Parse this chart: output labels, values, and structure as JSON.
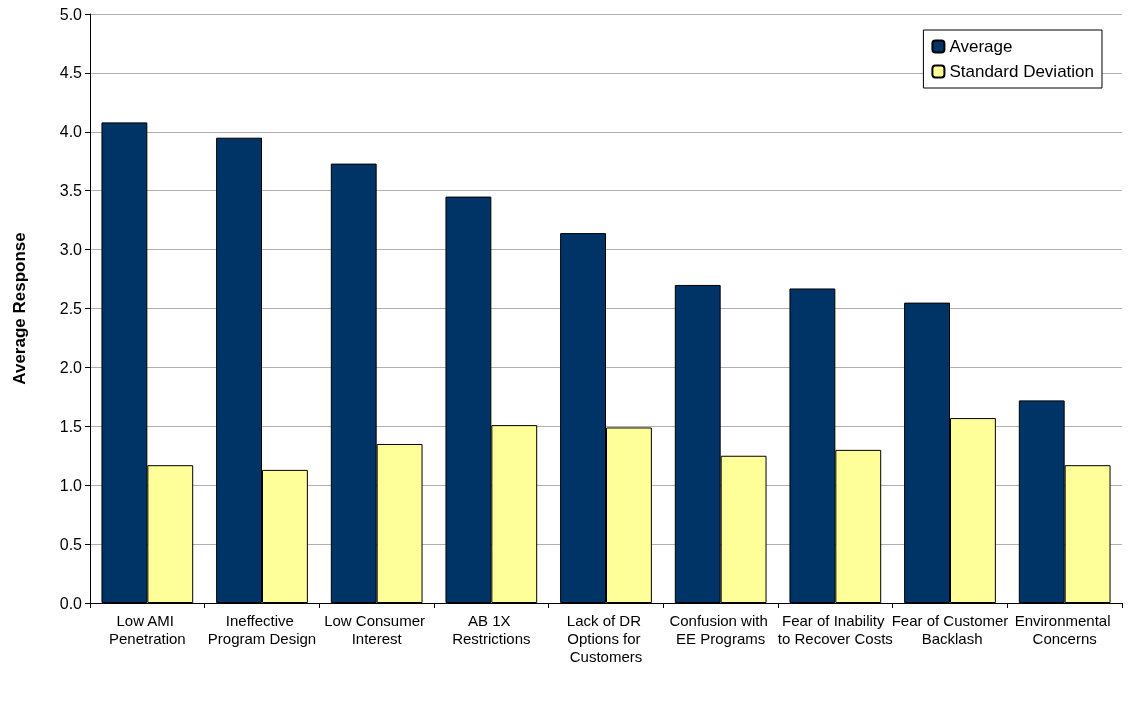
{
  "chart_data": {
    "type": "bar",
    "ylabel": "Average Response",
    "categories": [
      "Low AMI Penetration",
      "Ineffective Program Design",
      "Low Consumer Interest",
      "AB 1X Restrictions",
      "Lack of DR Options for Customers",
      "Confusion with EE Programs",
      "Fear of Inability to Recover Costs",
      "Fear of Customer Backlash",
      "Environmental Concerns"
    ],
    "series": [
      {
        "name": "Average",
        "color": "#003366",
        "values": [
          4.08,
          3.95,
          3.73,
          3.45,
          3.14,
          2.7,
          2.67,
          2.55,
          1.72
        ]
      },
      {
        "name": "Standard Deviation",
        "color": "#ffff99",
        "values": [
          1.17,
          1.13,
          1.35,
          1.51,
          1.49,
          1.25,
          1.3,
          1.57,
          1.17
        ]
      }
    ],
    "ylim": [
      0,
      5
    ],
    "yticks": [
      {
        "value": 0,
        "label": "0.0"
      },
      {
        "value": 0.5,
        "label": "0.5"
      },
      {
        "value": 1,
        "label": "1.0"
      },
      {
        "value": 1.5,
        "label": "1.5"
      },
      {
        "value": 2,
        "label": "2.0"
      },
      {
        "value": 2.5,
        "label": "2.5"
      },
      {
        "value": 3,
        "label": "3.0"
      },
      {
        "value": 3.5,
        "label": "3.5"
      },
      {
        "value": 4,
        "label": "4.0"
      },
      {
        "value": 4.5,
        "label": "4.5"
      },
      {
        "value": 5,
        "label": "5.0"
      }
    ],
    "grid": "y",
    "legend": "top right"
  }
}
